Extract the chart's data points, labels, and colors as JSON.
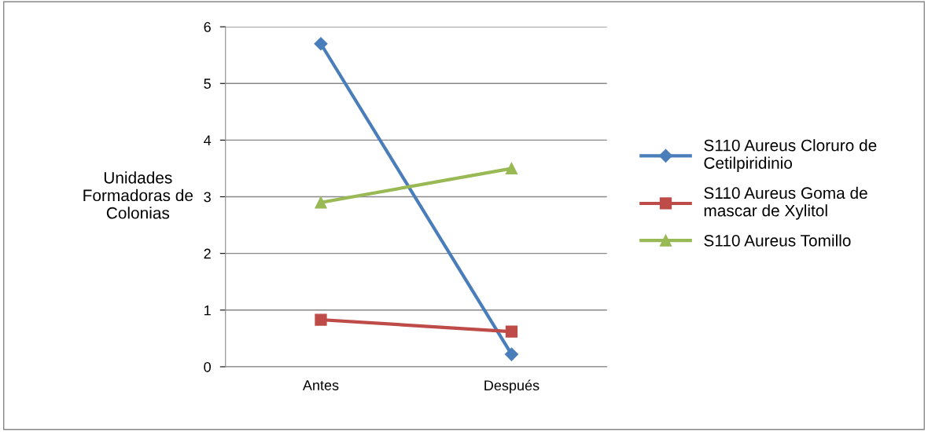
{
  "chart_data": {
    "type": "line",
    "ylabel": "Unidades\nFormadoras de\nColonias",
    "categories": [
      "Antes",
      "Después"
    ],
    "series": [
      {
        "name": "S110 Aureus Cloruro de\nCetilpiridinio",
        "color": "#4a7ebb",
        "marker": "diamond",
        "values": [
          5.7,
          0.22
        ]
      },
      {
        "name": "S110 Aureus Goma de\nmascar de Xylitol",
        "color": "#be4b48",
        "marker": "square",
        "values": [
          0.83,
          0.62
        ]
      },
      {
        "name": "S110 Aureus Tomillo",
        "color": "#98b954",
        "marker": "triangle",
        "values": [
          2.9,
          3.5
        ]
      }
    ],
    "ylim": [
      0,
      6
    ],
    "yticks": [
      0,
      1,
      2,
      3,
      4,
      5,
      6
    ],
    "grid": "y",
    "legend": "right",
    "line_style": "solid"
  }
}
